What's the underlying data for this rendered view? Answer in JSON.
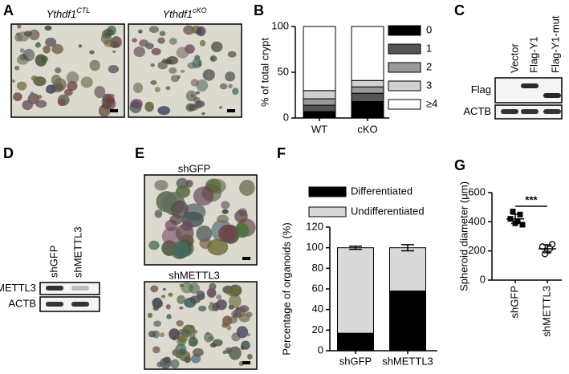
{
  "panels": {
    "A": {
      "label": "A",
      "images": [
        {
          "title": "Ythdf1",
          "sup": "CTL"
        },
        {
          "title": "Ythdf1",
          "sup": "cKO"
        }
      ]
    },
    "C": {
      "label": "C",
      "lanes": [
        "Vector",
        "Flag-Y1",
        "Flag-Y1-mut"
      ],
      "rows": [
        "Flag",
        "ACTB"
      ]
    },
    "D": {
      "label": "D",
      "lanes": [
        "shGFP",
        "shMETTL3"
      ],
      "rows": [
        "METTL3",
        "ACTB"
      ]
    },
    "E": {
      "label": "E",
      "images": [
        "shGFP",
        "shMETTL3"
      ]
    }
  },
  "chart_data": [
    {
      "type": "bar",
      "stacked": true,
      "label": "B",
      "ylabel": "% of total crypt",
      "categories": [
        "WT",
        "cKO"
      ],
      "series": [
        {
          "name": "0",
          "color": "#000000",
          "values": [
            7,
            18
          ]
        },
        {
          "name": "1",
          "color": "#555555",
          "values": [
            7,
            9
          ]
        },
        {
          "name": "2",
          "color": "#999999",
          "values": [
            7,
            7
          ]
        },
        {
          "name": "3",
          "color": "#d0d0d0",
          "values": [
            9,
            7
          ]
        },
        {
          "name": "≥4",
          "color": "#ffffff",
          "values": [
            70,
            59
          ]
        }
      ],
      "ylim": [
        0,
        100
      ],
      "yticks": [
        0,
        50,
        100
      ],
      "legend": "right"
    },
    {
      "type": "bar",
      "stacked": true,
      "label": "F",
      "ylabel": "Percentage of organoids (%)",
      "categories": [
        "shGFP",
        "shMETTL3"
      ],
      "series": [
        {
          "name": "Differentiated",
          "color": "#000000",
          "values": [
            17,
            58
          ],
          "errors": [
            1.5,
            3
          ]
        },
        {
          "name": "Undifferentiated",
          "color": "#d9d9d9",
          "values": [
            83,
            42
          ],
          "errors": [
            1.5,
            3
          ]
        }
      ],
      "ylim": [
        0,
        120
      ],
      "yticks": [
        0,
        20,
        40,
        60,
        80,
        100,
        120
      ],
      "legend": "top"
    },
    {
      "type": "scatter",
      "label": "G",
      "ylabel": "Spheroid diameter (μm)",
      "categories": [
        "shGFP",
        "shMETTL3"
      ],
      "series": [
        {
          "marker": "square",
          "color": "#000000",
          "values": [
            420,
            390,
            450,
            470,
            405,
            380
          ]
        },
        {
          "marker": "circle",
          "color": "#ffffff",
          "values": [
            230,
            200,
            245,
            180,
            215
          ]
        }
      ],
      "means": [
        420,
        215
      ],
      "sds": [
        32,
        27
      ],
      "annotation": "***",
      "ylim": [
        0,
        600
      ],
      "yticks": [
        0,
        200,
        400,
        600
      ]
    }
  ]
}
